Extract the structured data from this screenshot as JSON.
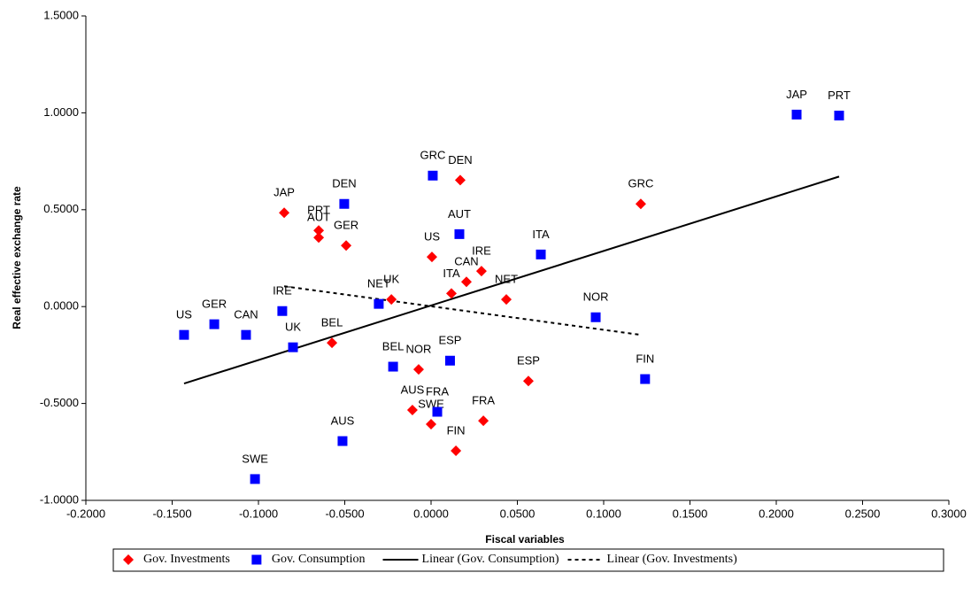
{
  "chart_data": {
    "type": "scatter",
    "x_label": "Fiscal variables",
    "y_label": "Real effective exchange rate",
    "xlim": [
      -0.2,
      0.3
    ],
    "ylim": [
      -1,
      1.5
    ],
    "xticks": [
      {
        "value": -0.2,
        "label": "-0.2000"
      },
      {
        "value": -0.15,
        "label": "-0.1500"
      },
      {
        "value": -0.1,
        "label": "-0.1000"
      },
      {
        "value": -0.05,
        "label": "-0.0500"
      },
      {
        "value": 0,
        "label": "0.0000"
      },
      {
        "value": 0.05,
        "label": "0.0500"
      },
      {
        "value": 0.1,
        "label": "0.1000"
      },
      {
        "value": 0.15,
        "label": "0.1500"
      },
      {
        "value": 0.2,
        "label": "0.2000"
      },
      {
        "value": 0.25,
        "label": "0.2500"
      },
      {
        "value": 0.3,
        "label": "0.3000"
      }
    ],
    "yticks": [
      {
        "value": -1,
        "label": "-1.0000"
      },
      {
        "value": -0.5,
        "label": "-0.5000"
      },
      {
        "value": 0,
        "label": "0.0000"
      },
      {
        "value": 0.5,
        "label": "0.5000"
      },
      {
        "value": 1,
        "label": "1.0000"
      },
      {
        "value": 1.5,
        "label": "1.5000"
      }
    ],
    "series": [
      {
        "name": "Gov. Investments",
        "color": "#ff0000",
        "marker": "diamond",
        "labels": [
          "JAP",
          "PRT",
          "AUT",
          "GER",
          "BEL",
          "UK",
          "US",
          "DEN",
          "IRE",
          "CAN",
          "ITA",
          "NET",
          "NOR",
          "AUS",
          "SWE",
          "FIN",
          "FRA",
          "ESP",
          "GRC"
        ],
        "x": [
          -0.0851,
          -0.0651,
          -0.0651,
          -0.0492,
          -0.0574,
          -0.023,
          0.0005,
          0.0169,
          0.0292,
          0.0205,
          0.0118,
          0.0436,
          -0.0072,
          -0.0108,
          0.0,
          0.0144,
          0.0303,
          0.0564,
          0.1215
        ],
        "values": [
          0.484,
          0.393,
          0.356,
          0.315,
          -0.187,
          0.037,
          0.256,
          0.653,
          0.183,
          0.128,
          0.068,
          0.037,
          -0.324,
          -0.534,
          -0.607,
          -0.744,
          -0.589,
          -0.384,
          0.53
        ]
      },
      {
        "name": "Gov. Consumption",
        "color": "#0000ff",
        "marker": "square",
        "labels": [
          "US",
          "GER",
          "CAN",
          "IRE",
          "UK",
          "DEN",
          "NET",
          "BEL",
          "GRC",
          "ESP",
          "FRA",
          "AUT",
          "ITA",
          "NOR",
          "FIN",
          "AUS",
          "SWE",
          "JAP",
          "PRT"
        ],
        "x": [
          -0.1431,
          -0.1256,
          -0.1072,
          -0.0862,
          -0.08,
          -0.0503,
          -0.0303,
          -0.022,
          0.001,
          0.011,
          0.0036,
          0.0164,
          0.0636,
          0.0954,
          0.124,
          -0.0513,
          -0.102,
          0.2118,
          0.2364
        ],
        "values": [
          -0.146,
          -0.091,
          -0.146,
          -0.023,
          -0.21,
          0.53,
          0.014,
          -0.31,
          0.676,
          -0.279,
          -0.543,
          0.374,
          0.269,
          -0.055,
          -0.374,
          -0.694,
          -0.89,
          0.991,
          0.986
        ]
      }
    ],
    "trendlines": [
      {
        "name": "Linear (Gov. Consumption)",
        "color": "#000000",
        "style": "solid",
        "x": [
          -0.1431,
          0.2364
        ],
        "values": [
          -0.397,
          0.671
        ]
      },
      {
        "name": "Linear (Gov. Investments)",
        "color": "#000000",
        "style": "dashed",
        "x": [
          -0.0851,
          0.1215
        ],
        "values": [
          0.105,
          -0.146
        ]
      }
    ]
  }
}
